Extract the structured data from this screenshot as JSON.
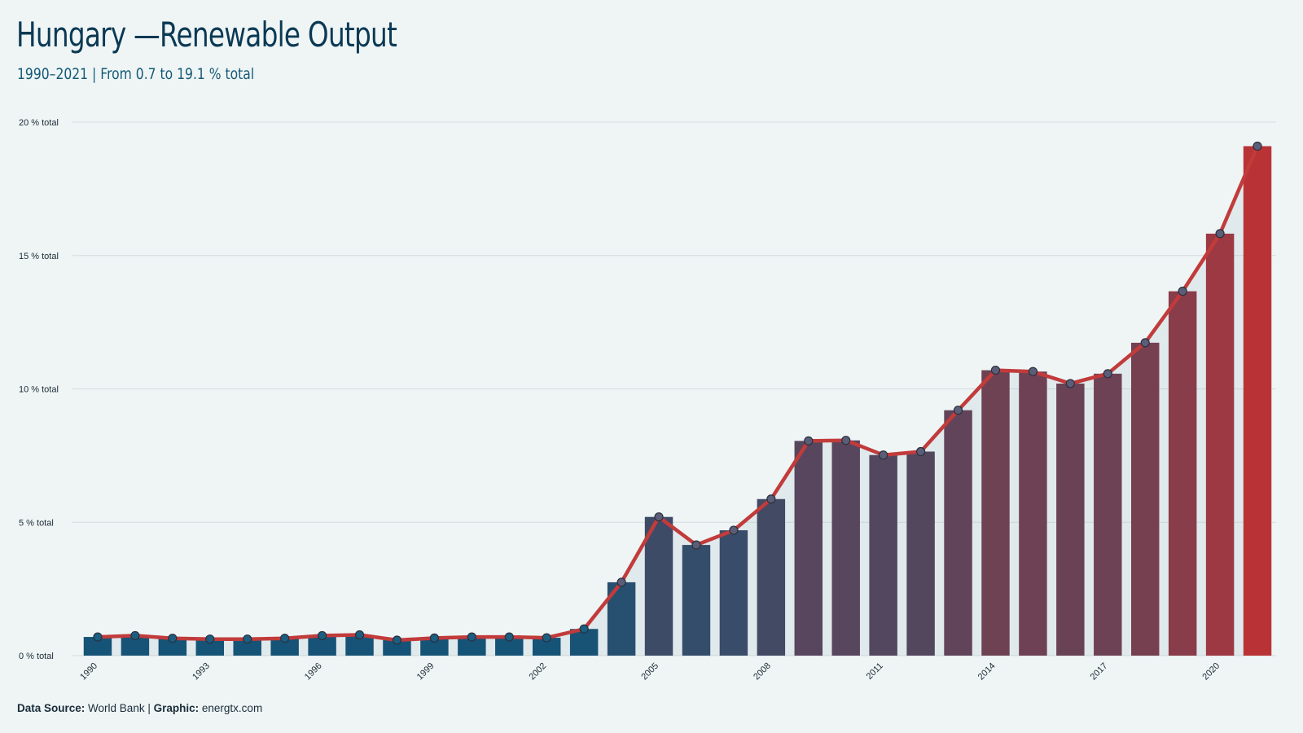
{
  "header": {
    "title": "Hungary —Renewable Output",
    "subtitle": "1990–2021 | From 0.7 to 19.1 % total"
  },
  "footer": {
    "source_label": "Data Source:",
    "source_value": "World Bank",
    "separator": "|",
    "graphic_label": "Graphic:",
    "graphic_value": "energtx.com"
  },
  "colors": {
    "background": "#eff5f5",
    "bar_start": "#0f5479",
    "bar_end": "#b93336",
    "line": "#c23b3b",
    "grid": "#d4dcdf"
  },
  "chart_data": {
    "type": "bar",
    "overlay": "line",
    "title": "Hungary —Renewable Output",
    "subtitle": "1990–2021 | From 0.7 to 19.1 % total",
    "xlabel": "",
    "ylabel": "",
    "ylim": [
      0,
      20
    ],
    "yticks": [
      0,
      5,
      10,
      15,
      20
    ],
    "ytick_labels": [
      "0 % total",
      "5 % total",
      "10 % total",
      "15 % total",
      "20 % total"
    ],
    "xtick_labels": [
      "1990",
      "1993",
      "1996",
      "1999",
      "2002",
      "2005",
      "2008",
      "2011",
      "2014",
      "2017",
      "2020"
    ],
    "grid": true,
    "categories": [
      "1990",
      "1991",
      "1992",
      "1993",
      "1994",
      "1995",
      "1996",
      "1997",
      "1998",
      "1999",
      "2000",
      "2001",
      "2002",
      "2003",
      "2004",
      "2005",
      "2006",
      "2007",
      "2008",
      "2009",
      "2010",
      "2011",
      "2012",
      "2013",
      "2014",
      "2015",
      "2016",
      "2017",
      "2018",
      "2019",
      "2020",
      "2021"
    ],
    "values": [
      0.7,
      0.75,
      0.65,
      0.62,
      0.62,
      0.65,
      0.75,
      0.78,
      0.58,
      0.66,
      0.7,
      0.7,
      0.67,
      1.0,
      2.75,
      5.2,
      4.15,
      4.7,
      5.87,
      8.05,
      8.07,
      7.52,
      7.65,
      9.2,
      10.7,
      10.65,
      10.2,
      10.57,
      11.73,
      13.66,
      15.82,
      19.1
    ]
  }
}
